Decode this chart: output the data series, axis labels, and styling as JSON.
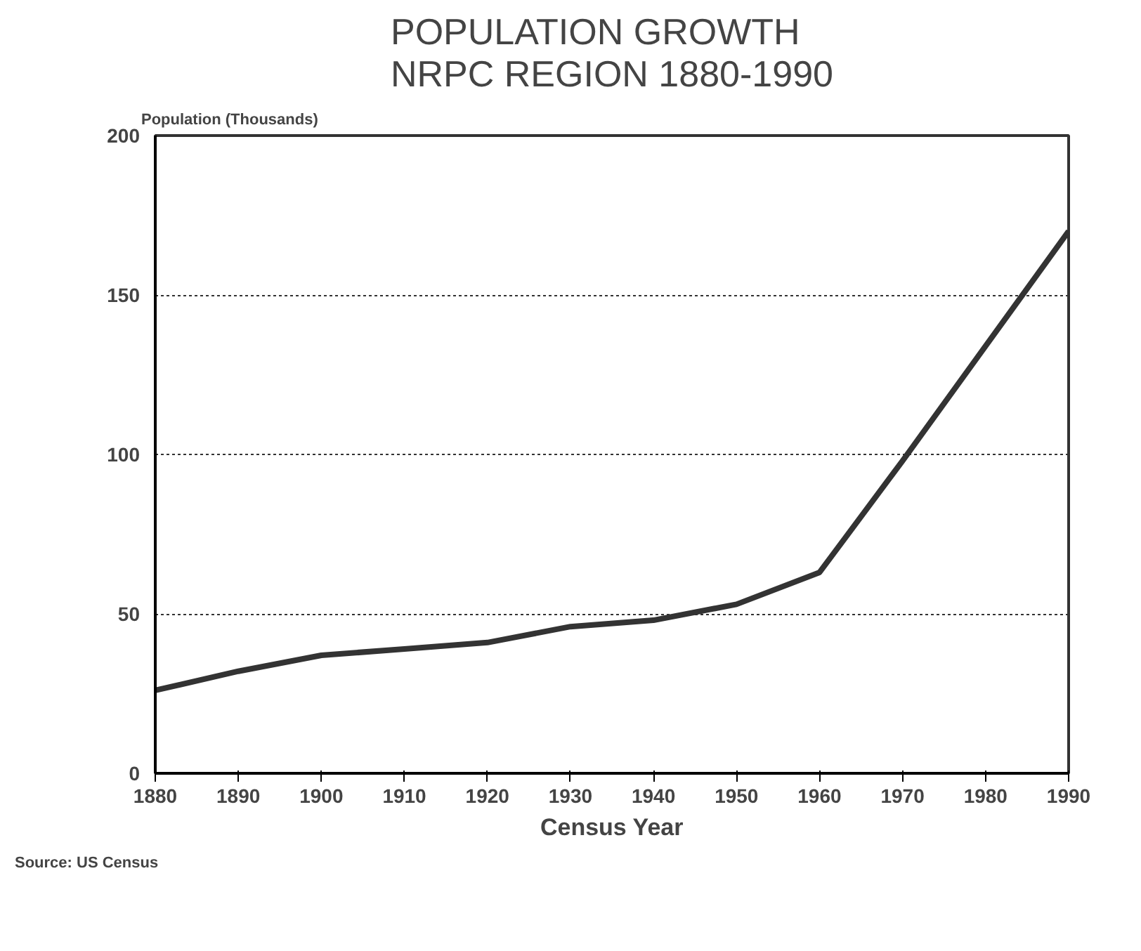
{
  "chart_data": {
    "type": "line",
    "title": "POPULATION GROWTH\nNRPC REGION 1880-1990",
    "ylabel": "Population (Thousands)",
    "xlabel": "Census Year",
    "x": [
      1880,
      1890,
      1900,
      1910,
      1920,
      1930,
      1940,
      1950,
      1960,
      1970,
      1980,
      1990
    ],
    "series": [
      {
        "color": "#333333",
        "values": [
          26,
          32,
          37,
          39,
          41,
          46,
          48,
          53,
          63,
          98,
          134,
          170
        ]
      }
    ],
    "xlim": [
      1880,
      1990
    ],
    "xticks": [
      1880,
      1890,
      1900,
      1910,
      1920,
      1930,
      1940,
      1950,
      1960,
      1970,
      1980,
      1990
    ],
    "ylim": [
      0,
      200
    ],
    "yticks": [
      0,
      50,
      100,
      150,
      200
    ],
    "grid": "y",
    "marker": "none",
    "line_style": "solid",
    "annotations": [
      "Source: US Census"
    ]
  }
}
